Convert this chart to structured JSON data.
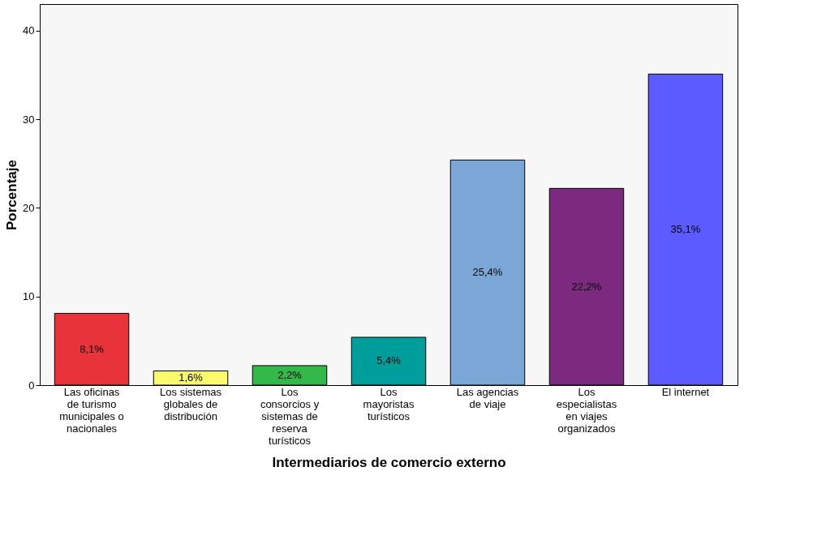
{
  "chart_data": {
    "type": "bar",
    "xlabel": "Intermediarios de comercio externo",
    "ylabel": "Porcentaje",
    "categories": [
      "Las oficinas de turismo municipales o nacionales",
      "Los sistemas globales de distribución",
      "Los consorcios y sistemas de reserva turísticos",
      "Los mayoristas turísticos",
      "Las agencias de viaje",
      "Los especialistas en viajes organizados",
      "El internet"
    ],
    "values": [
      8.1,
      1.6,
      2.2,
      5.4,
      25.4,
      22.2,
      35.1
    ],
    "value_labels": [
      "8,1%",
      "1,6%",
      "2,2%",
      "5,4%",
      "25,4%",
      "22,2%",
      "35,1%"
    ],
    "colors": [
      "#e8333b",
      "#fafa6e",
      "#33b84a",
      "#009e9a",
      "#7aa7d6",
      "#7b2a7f",
      "#5b5bff"
    ],
    "ylim": [
      0,
      43
    ],
    "yticks": [
      0,
      10,
      20,
      30,
      40
    ]
  }
}
